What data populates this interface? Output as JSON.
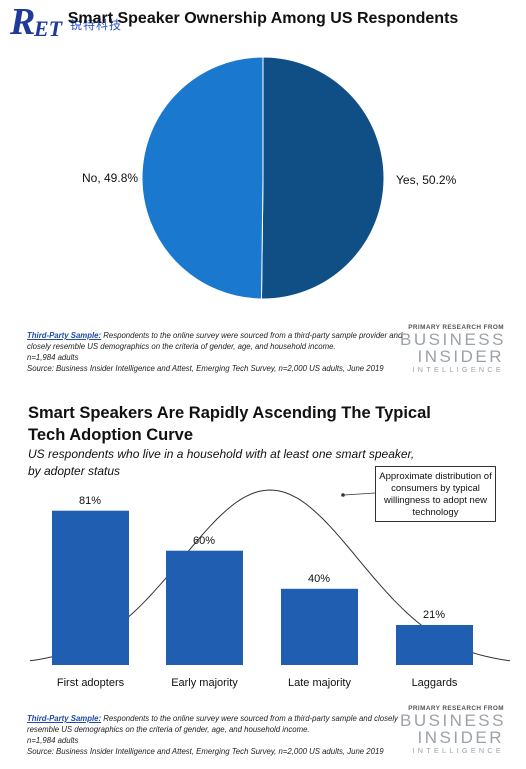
{
  "pie_section": {
    "title": "Smart Speaker Ownership Among US Respondents",
    "labels": [
      "No, 49.8%",
      "Yes, 50.2%"
    ],
    "note": {
      "link": "Third-Party Sample:",
      "text": " Respondents to the online survey were sourced from a third-party sample provider and closely resemble US demographics on the criteria of gender, age, and household income.",
      "n": "n=1,984 adults",
      "source": "Source: Business Insider Intelligence and Attest, Emerging Tech Survey, n=2,000 US adults, June 2019"
    }
  },
  "bar_section": {
    "title_line1": "Smart Speakers Are Rapidly Ascending The Typical",
    "title_line2": "Tech Adoption Curve",
    "subtitle_line1": "US respondents who live in a household with at least one smart speaker,",
    "subtitle_line2": "by adopter status",
    "callout": "Approximate distribution of consumers by typical willingness to adopt new technology",
    "note": {
      "link": "Third-Party Sample:",
      "text": " Respondents to the online survey were sourced from a third-party sample and closely resemble US demographics on the criteria of gender, age, and household income.",
      "n": "n=1,984 adults",
      "source": "Source: Business Insider Intelligence and Attest, Emerging Tech Survey, n=2,000 US adults, June 2019"
    }
  },
  "branding": {
    "logo_r": "R",
    "logo_et": "ET",
    "logo_cn": "锐特科技",
    "primary_research": "PRIMARY RESEARCH FROM",
    "business": "BUSINESS",
    "insider": "INSIDER",
    "intelligence": "INTELLIGENCE"
  },
  "colors": {
    "pie_no": "#1a78cf",
    "pie_yes": "#0f4f86",
    "bar": "#1f5eb0",
    "curve": "#333333"
  },
  "chart_data": [
    {
      "type": "pie",
      "title": "Smart Speaker Ownership Among US Respondents",
      "categories": [
        "No",
        "Yes"
      ],
      "values": [
        49.8,
        50.2
      ]
    },
    {
      "type": "bar",
      "title": "Smart Speakers Are Rapidly Ascending The Typical Tech Adoption Curve",
      "subtitle": "US respondents who live in a household with at least one smart speaker, by adopter status",
      "categories": [
        "First adopters",
        "Early majority",
        "Late majority",
        "Laggards"
      ],
      "values": [
        81,
        60,
        40,
        21
      ],
      "value_labels": [
        "81%",
        "60%",
        "40%",
        "21%"
      ],
      "grid": false
    }
  ]
}
